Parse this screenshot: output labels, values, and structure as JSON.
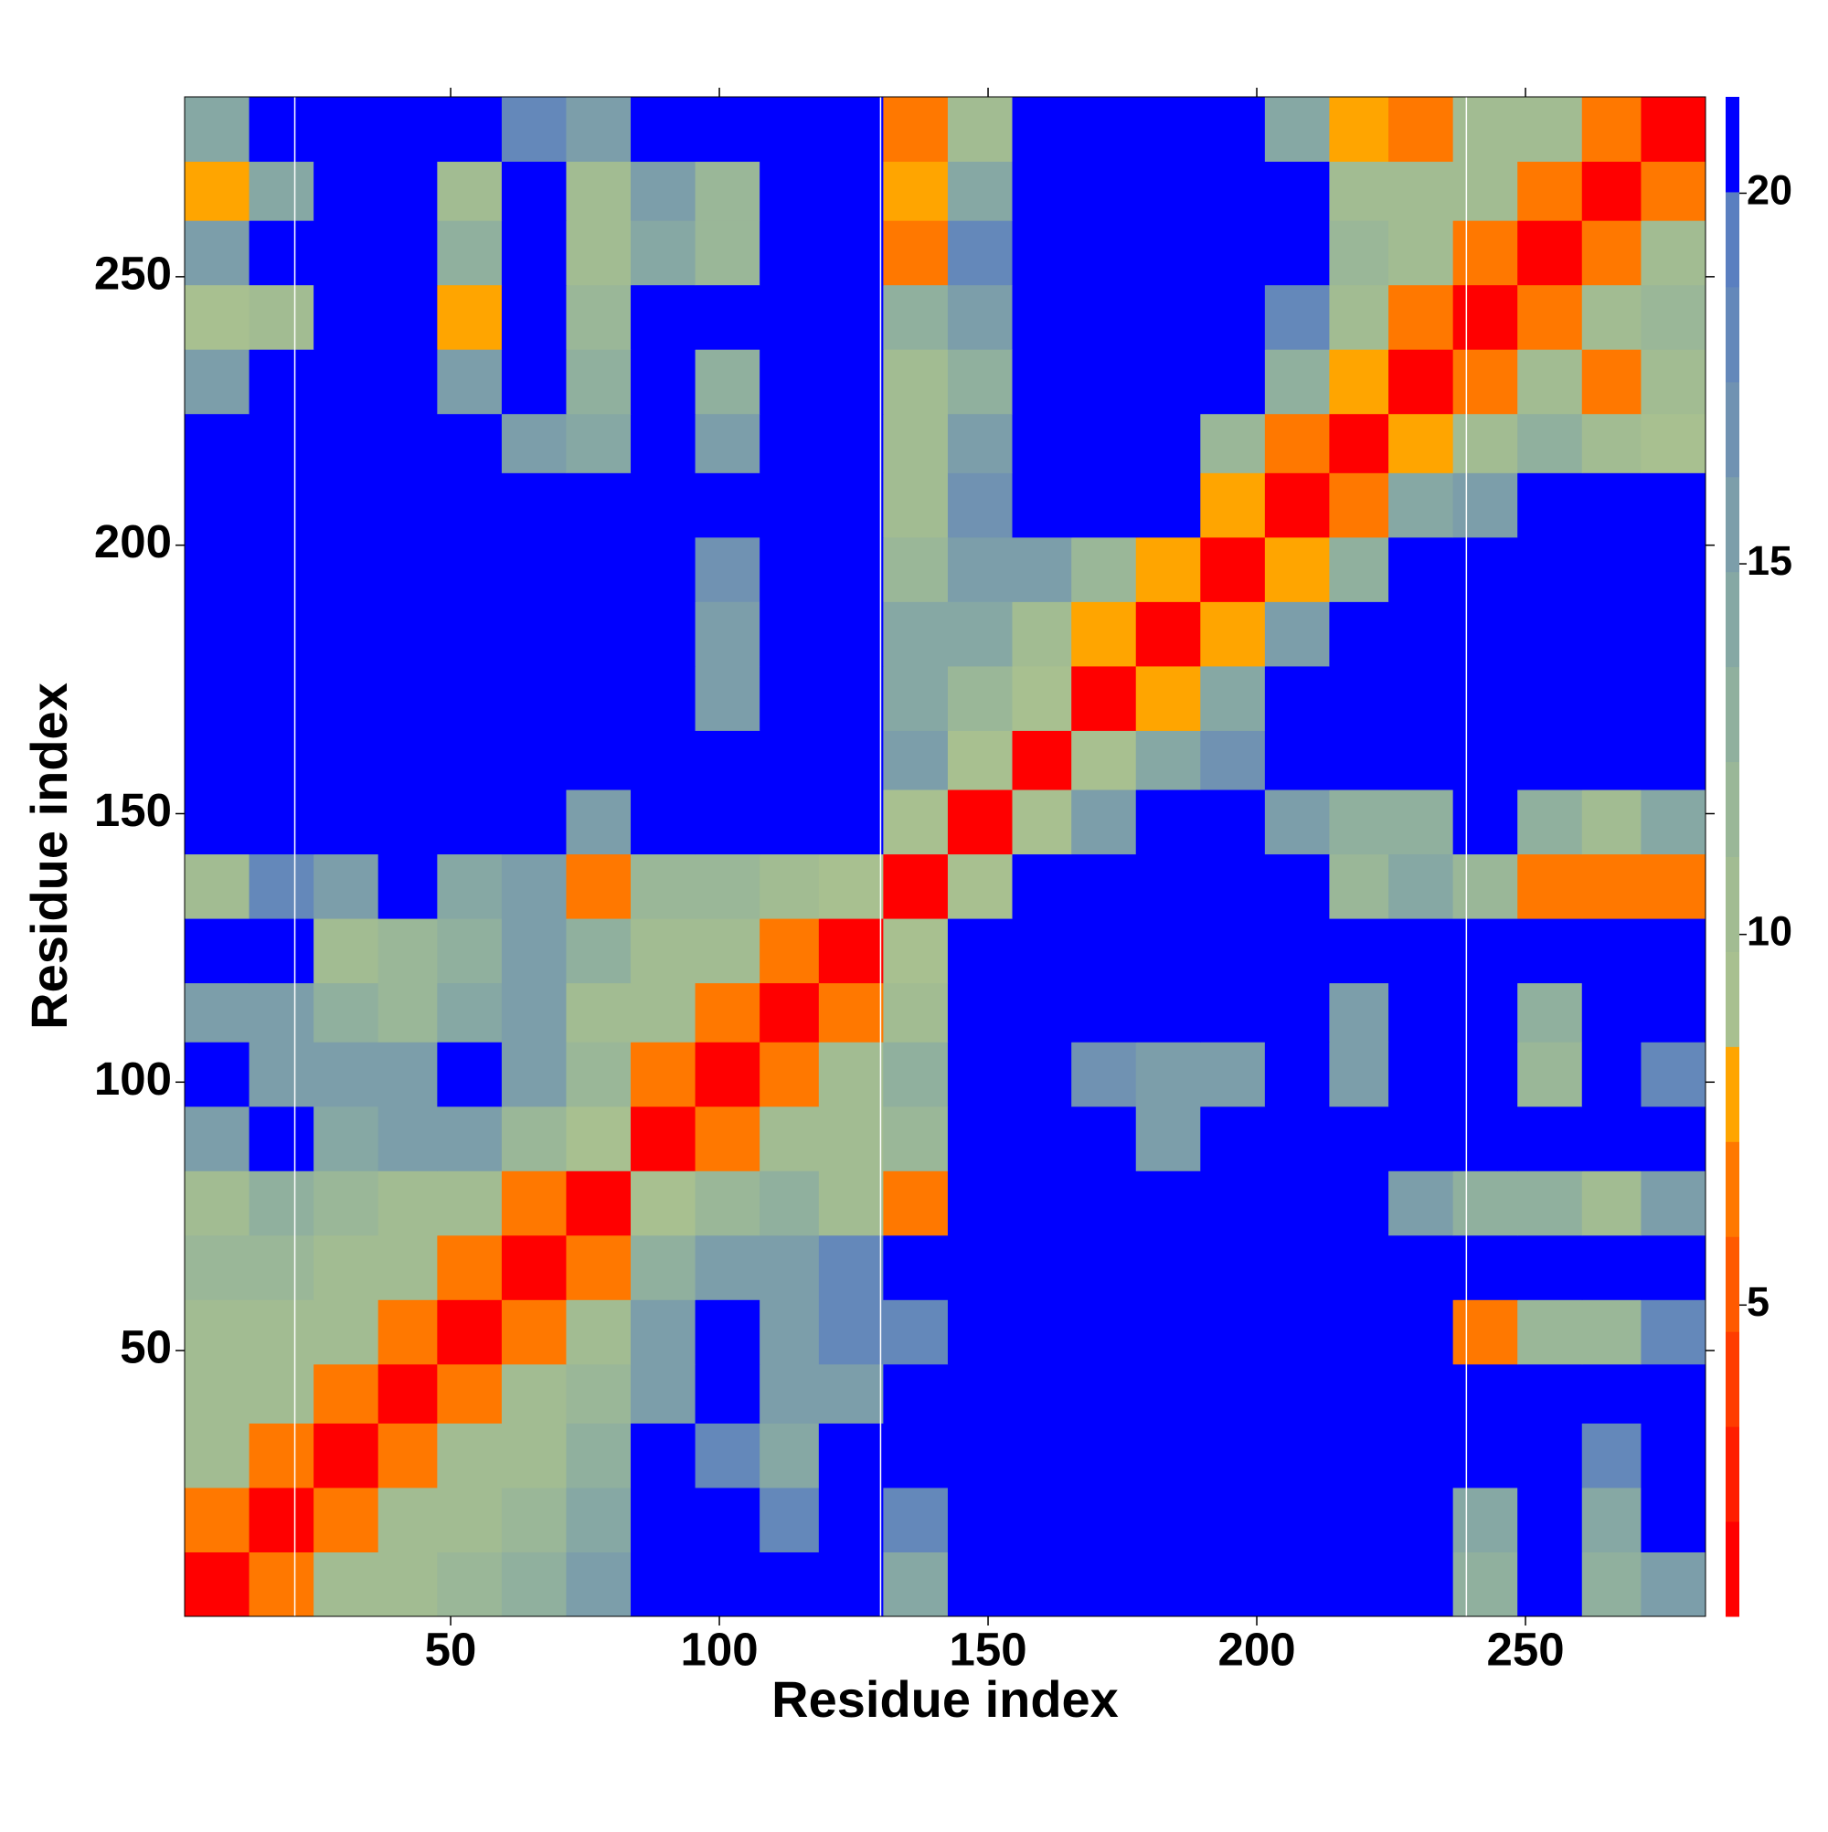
{
  "chart_data": {
    "type": "heatmap",
    "x_label": "Residue index",
    "y_label": "Residue index",
    "xlim": [
      0.5,
      283.5
    ],
    "ylim": [
      0.5,
      283.5
    ],
    "xticks": [
      50,
      100,
      150,
      200,
      250
    ],
    "yticks": [
      50,
      100,
      150,
      200,
      250
    ],
    "xbins": [
      0.5,
      12.5,
      24.5,
      36.5,
      47.5,
      59.5,
      71.5,
      83.5,
      95.5,
      107.5,
      118.5,
      130.5,
      142.5,
      154.5,
      165.5,
      177.5,
      189.5,
      201.5,
      213.5,
      224.5,
      236.5,
      248.5,
      260.5,
      271.5,
      283.5
    ],
    "ybins": [
      0.5,
      12.5,
      24.5,
      36.5,
      47.5,
      59.5,
      71.5,
      83.5,
      95.5,
      107.5,
      118.5,
      130.5,
      142.5,
      154.5,
      165.5,
      177.5,
      189.5,
      201.5,
      213.5,
      224.5,
      236.5,
      248.5,
      260.5,
      271.5,
      283.5
    ],
    "z": [
      [
        2,
        7,
        10,
        11,
        12,
        13,
        16,
        21,
        21,
        21,
        21,
        14,
        21,
        21,
        21,
        21,
        21,
        21,
        21,
        21,
        13,
        21,
        13,
        16
      ],
      [
        7,
        2,
        7,
        10,
        11,
        12,
        14,
        21,
        21,
        18,
        21,
        18,
        21,
        21,
        21,
        21,
        21,
        21,
        21,
        21,
        14,
        21,
        14,
        21
      ],
      [
        10,
        7,
        2,
        6,
        10,
        11,
        13,
        21,
        18,
        14,
        21,
        21,
        21,
        21,
        21,
        21,
        21,
        21,
        21,
        21,
        21,
        21,
        18,
        21
      ],
      [
        11,
        10,
        6,
        2,
        6,
        10,
        12,
        15,
        21,
        15,
        16,
        21,
        21,
        21,
        21,
        21,
        21,
        21,
        21,
        21,
        21,
        21,
        21,
        21
      ],
      [
        11,
        11,
        10,
        6,
        2,
        6,
        10,
        16,
        21,
        16,
        18,
        18,
        21,
        21,
        21,
        21,
        21,
        21,
        21,
        21,
        6,
        12,
        12,
        18
      ],
      [
        12,
        12,
        11,
        10,
        6,
        2,
        6,
        13,
        16,
        16,
        18,
        21,
        21,
        21,
        21,
        21,
        21,
        21,
        21,
        21,
        21,
        21,
        21,
        21
      ],
      [
        11,
        13,
        12,
        11,
        10,
        6,
        2,
        9,
        12,
        13,
        11,
        7,
        21,
        21,
        21,
        21,
        21,
        21,
        21,
        15,
        13,
        13,
        11,
        15
      ],
      [
        16,
        21,
        14,
        15,
        16,
        12,
        9,
        2,
        6,
        10,
        11,
        12,
        21,
        21,
        21,
        16,
        21,
        21,
        21,
        21,
        21,
        21,
        21,
        21
      ],
      [
        21,
        16,
        15,
        16,
        21,
        16,
        12,
        6,
        2,
        6,
        10,
        13,
        21,
        21,
        17,
        15,
        16,
        21,
        15,
        21,
        21,
        12,
        21,
        18
      ],
      [
        15,
        16,
        13,
        12,
        14,
        15,
        11,
        10,
        6,
        2,
        7,
        11,
        21,
        21,
        21,
        21,
        21,
        21,
        15,
        21,
        21,
        13,
        21,
        21
      ],
      [
        21,
        21,
        11,
        12,
        13,
        16,
        13,
        11,
        10,
        7,
        2,
        9,
        21,
        21,
        21,
        21,
        21,
        21,
        21,
        21,
        21,
        21,
        21,
        21
      ],
      [
        10,
        18,
        16,
        21,
        14,
        16,
        7,
        12,
        12,
        11,
        9,
        2,
        9,
        21,
        21,
        21,
        21,
        21,
        12,
        14,
        12,
        7,
        6,
        7
      ],
      [
        21,
        21,
        21,
        21,
        21,
        21,
        15,
        21,
        21,
        21,
        21,
        9,
        2,
        9,
        16,
        21,
        21,
        16,
        13,
        13,
        21,
        13,
        11,
        14
      ],
      [
        21,
        21,
        21,
        21,
        21,
        21,
        21,
        21,
        21,
        21,
        21,
        16,
        9,
        2,
        9,
        14,
        17,
        21,
        21,
        21,
        21,
        21,
        21,
        21
      ],
      [
        21,
        21,
        21,
        21,
        21,
        21,
        21,
        21,
        15,
        21,
        21,
        14,
        12,
        9,
        2,
        8,
        14,
        21,
        21,
        21,
        21,
        21,
        21,
        21
      ],
      [
        21,
        21,
        21,
        21,
        21,
        21,
        21,
        21,
        16,
        21,
        21,
        14,
        14,
        11,
        8,
        2,
        8,
        16,
        21,
        21,
        21,
        21,
        21,
        21
      ],
      [
        21,
        21,
        21,
        21,
        21,
        21,
        21,
        21,
        17,
        21,
        21,
        12,
        16,
        16,
        12,
        8,
        2,
        8,
        13,
        21,
        21,
        21,
        21,
        21
      ],
      [
        21,
        21,
        21,
        21,
        21,
        21,
        21,
        21,
        21,
        21,
        21,
        10,
        17,
        21,
        21,
        21,
        8,
        2,
        7,
        14,
        16,
        21,
        21,
        21
      ],
      [
        21,
        21,
        21,
        21,
        21,
        16,
        14,
        21,
        15,
        21,
        21,
        11,
        15,
        21,
        21,
        21,
        12,
        7,
        2,
        8,
        11,
        13,
        11,
        9
      ],
      [
        15,
        21,
        21,
        21,
        15,
        21,
        13,
        21,
        13,
        21,
        21,
        11,
        13,
        21,
        21,
        21,
        21,
        13,
        8,
        2,
        6,
        10,
        6,
        10
      ],
      [
        9,
        10,
        21,
        21,
        8,
        21,
        12,
        21,
        21,
        21,
        21,
        13,
        15,
        21,
        21,
        21,
        21,
        18,
        11,
        6,
        2,
        6,
        10,
        12
      ],
      [
        15,
        21,
        21,
        21,
        13,
        21,
        10,
        14,
        12,
        21,
        21,
        7,
        18,
        21,
        21,
        21,
        21,
        21,
        12,
        10,
        6,
        2,
        6,
        11
      ],
      [
        8,
        14,
        21,
        21,
        11,
        21,
        11,
        16,
        12,
        21,
        21,
        8,
        14,
        21,
        21,
        21,
        21,
        21,
        11,
        10,
        10,
        6,
        2,
        6
      ],
      [
        14,
        21,
        21,
        21,
        21,
        18,
        16,
        21,
        21,
        21,
        21,
        6,
        11,
        21,
        21,
        21,
        21,
        14,
        8,
        7,
        11,
        11,
        6,
        2
      ]
    ],
    "clim": [
      0.8,
      21.3
    ],
    "colormap": [
      "#ff0000",
      "#ff1e00",
      "#ff3c00",
      "#ff5a00",
      "#ff7800",
      "#ffa500",
      "#a8c090",
      "#a2bc92",
      "#9ab798",
      "#90b09e",
      "#86a8a4",
      "#7c9eaa",
      "#7092b2",
      "#6488ba",
      "#5a7fc0",
      "#0000ff"
    ],
    "cticks": [
      5,
      10,
      15,
      20
    ],
    "vlines": [
      21,
      130,
      239
    ],
    "vline_color": "#ffffff"
  }
}
